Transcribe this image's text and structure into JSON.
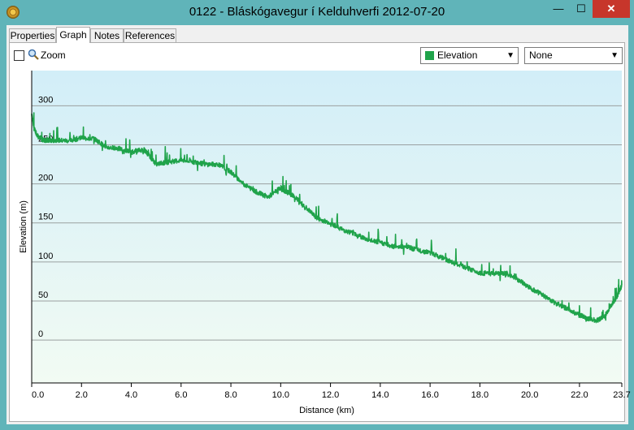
{
  "window": {
    "title": "0122 - Bláskógavegur í Kelduhverfi 2012-07-20",
    "minimize_glyph": "—",
    "maximize_glyph": "☐",
    "close_glyph": "✕",
    "app_icon": "compass-icon"
  },
  "tabs": [
    {
      "label": "Properties",
      "active": false
    },
    {
      "label": "Graph",
      "active": true
    },
    {
      "label": "Notes",
      "active": false
    },
    {
      "label": "References",
      "active": false
    }
  ],
  "toolbar": {
    "zoom_label": "Zoom",
    "zoom_checked": false,
    "series_select": {
      "value": "Elevation",
      "color": "#1fa34a"
    },
    "secondary_select": {
      "value": "None"
    }
  },
  "chart_data": {
    "type": "line",
    "title": "",
    "xlabel": "Distance  (km)",
    "ylabel": "Elevation (m)",
    "xlim": [
      0,
      23.7
    ],
    "ylim": [
      -55,
      345
    ],
    "x_ticks": [
      "0.0",
      "2.0",
      "4.0",
      "6.0",
      "8.0",
      "10.0",
      "12.0",
      "14.0",
      "16.0",
      "18.0",
      "20.0",
      "22.0",
      "23.7"
    ],
    "x_tick_values": [
      0,
      2,
      4,
      6,
      8,
      10,
      12,
      14,
      16,
      18,
      20,
      22,
      23.7
    ],
    "y_ticks": [
      "0",
      "50",
      "100",
      "150",
      "200",
      "250",
      "300"
    ],
    "y_tick_values": [
      0,
      50,
      100,
      150,
      200,
      250,
      300
    ],
    "grid": true,
    "series": [
      {
        "color": "#1fa34a",
        "x": [
          0,
          0.1,
          0.3,
          0.6,
          1.0,
          1.5,
          2.0,
          2.5,
          3.0,
          3.5,
          4.0,
          4.5,
          4.7,
          5.0,
          5.5,
          6.0,
          6.5,
          7.0,
          7.5,
          8.0,
          8.5,
          9.0,
          9.5,
          10.0,
          10.2,
          10.5,
          11.0,
          11.5,
          12.0,
          12.5,
          13.0,
          13.5,
          14.0,
          14.5,
          15.0,
          15.5,
          16.0,
          16.5,
          17.0,
          17.5,
          18.0,
          18.5,
          19.0,
          19.5,
          20.0,
          20.5,
          21.0,
          21.5,
          22.0,
          22.3,
          22.7,
          23.0,
          23.3,
          23.5,
          23.7
        ],
        "y": [
          290,
          270,
          258,
          255,
          256,
          255,
          259,
          258,
          247,
          245,
          241,
          244,
          237,
          225,
          228,
          230,
          228,
          225,
          225,
          215,
          200,
          190,
          183,
          195,
          190,
          185,
          170,
          155,
          150,
          141,
          136,
          128,
          125,
          120,
          120,
          115,
          112,
          105,
          98,
          92,
          86,
          85,
          85,
          78,
          67,
          58,
          48,
          40,
          32,
          28,
          25,
          30,
          45,
          55,
          70
        ]
      }
    ]
  }
}
